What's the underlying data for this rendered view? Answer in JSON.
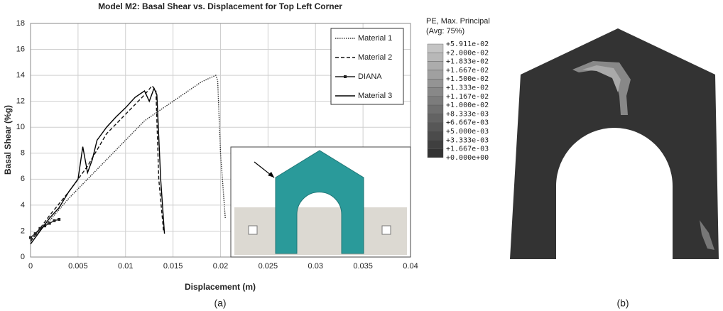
{
  "chart_data": {
    "type": "line",
    "title": "Model M2: Basal Shear vs. Displacement for Top Left Corner",
    "x_label": "Displacement (m)",
    "y_label": "Basal Shear (%g)",
    "xlim": [
      0,
      0.04
    ],
    "ylim": [
      0,
      18
    ],
    "xticks": [
      0,
      0.005,
      0.01,
      0.015,
      0.02,
      0.025,
      0.03,
      0.035,
      0.04
    ],
    "yticks": [
      0,
      2,
      4,
      6,
      8,
      10,
      12,
      14,
      16,
      18
    ],
    "grid": true,
    "legend": "upper right",
    "series": [
      {
        "name": "Material 1",
        "color": "#333333",
        "style": "dotted",
        "x": [
          0,
          0.002,
          0.004,
          0.006,
          0.008,
          0.01,
          0.012,
          0.014,
          0.016,
          0.018,
          0.0195,
          0.0197,
          0.02,
          0.0205
        ],
        "values": [
          1.3,
          2.8,
          4.5,
          6,
          7.5,
          9,
          10.5,
          11.5,
          12.5,
          13.5,
          14,
          13.6,
          8,
          3
        ]
      },
      {
        "name": "Material 2",
        "color": "#111111",
        "style": "dashed",
        "x": [
          0,
          0.002,
          0.004,
          0.006,
          0.008,
          0.01,
          0.012,
          0.0128,
          0.0132,
          0.0135,
          0.014
        ],
        "values": [
          1.2,
          3.2,
          5,
          7,
          9.5,
          11,
          12.5,
          13.2,
          12.8,
          6,
          2
        ]
      },
      {
        "name": "DIANA",
        "color": "#222222",
        "style": "markers",
        "x": [
          0,
          0.0005,
          0.001,
          0.0015,
          0.002,
          0.0025,
          0.003
        ],
        "values": [
          1.5,
          1.8,
          2.2,
          2.4,
          2.6,
          2.8,
          2.9
        ]
      },
      {
        "name": "Material 3",
        "color": "#000000",
        "style": "solid",
        "x": [
          0,
          0.001,
          0.002,
          0.003,
          0.004,
          0.005,
          0.0055,
          0.006,
          0.0065,
          0.007,
          0.008,
          0.009,
          0.01,
          0.011,
          0.012,
          0.0125,
          0.013,
          0.0133,
          0.0137,
          0.0141
        ],
        "values": [
          1,
          2,
          3,
          3.8,
          5,
          6,
          8.5,
          6.5,
          7.5,
          9,
          10,
          10.8,
          11.5,
          12.3,
          12.8,
          12,
          13,
          12.5,
          6,
          1.8
        ]
      }
    ]
  },
  "contour": {
    "title": "PE, Max. Principal",
    "subtitle": "(Avg: 75%)",
    "levels": [
      "+5.911e-02",
      "+2.000e-02",
      "+1.833e-02",
      "+1.667e-02",
      "+1.500e-02",
      "+1.333e-02",
      "+1.167e-02",
      "+1.000e-02",
      "+8.333e-03",
      "+6.667e-03",
      "+5.000e-03",
      "+3.333e-03",
      "+1.667e-03",
      "+0.000e+00"
    ]
  },
  "captions": [
    "(a)",
    "(b)"
  ]
}
